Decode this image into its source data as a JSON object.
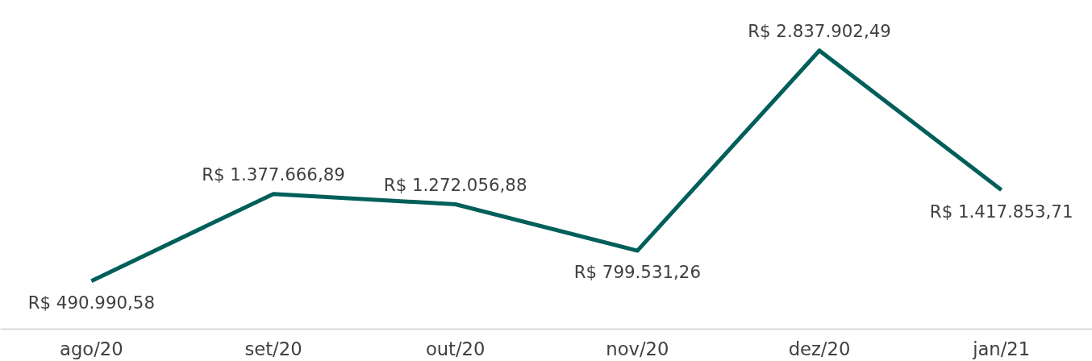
{
  "chart_data": {
    "type": "line",
    "categories": [
      "ago/20",
      "set/20",
      "out/20",
      "nov/20",
      "dez/20",
      "jan/21"
    ],
    "series": [
      {
        "color": "#005f5a",
        "values": [
          490990.58,
          1377666.89,
          1272056.88,
          799531.26,
          2837902.49,
          1417853.71
        ],
        "value_labels": [
          "R$ 490.990,58",
          "R$ 1.377.666,89",
          "R$ 1.272.056,88",
          "R$ 799.531,26",
          "R$ 2.837.902,49",
          "R$ 1.417.853,71"
        ]
      }
    ],
    "tick_labels": "x"
  }
}
